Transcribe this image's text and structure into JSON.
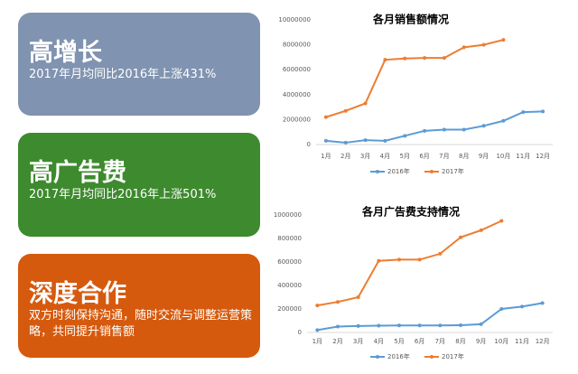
{
  "cards": [
    {
      "title": "高增长",
      "subtitle": "2017年月均同比2016年上涨431%",
      "color": "#8093b0"
    },
    {
      "title": "高广告费",
      "subtitle": "2017年月均同比2016年上涨501%",
      "color": "#3e8a2e"
    },
    {
      "title": "深度合作",
      "subtitle": "双方时刻保持沟通，随时交流与调整运营策略，共同提升销售额",
      "color": "#d65a0d"
    }
  ],
  "chart_data": [
    {
      "type": "line",
      "title": "各月销售额情况",
      "categories": [
        "1月",
        "2月",
        "3月",
        "4月",
        "5月",
        "6月",
        "7月",
        "8月",
        "9月",
        "10月",
        "11月",
        "12月"
      ],
      "series": [
        {
          "name": "2016年",
          "color": "#5b9bd5",
          "values": [
            300000,
            150000,
            350000,
            300000,
            700000,
            1100000,
            1200000,
            1200000,
            1500000,
            1900000,
            2600000,
            2650000
          ]
        },
        {
          "name": "2017年",
          "color": "#ed7d31",
          "values": [
            2200000,
            2700000,
            3300000,
            6800000,
            6900000,
            6950000,
            6950000,
            7800000,
            8000000,
            8400000,
            null,
            null
          ]
        }
      ],
      "ylim": [
        0,
        10000000
      ],
      "yticks": [
        0,
        2000000,
        4000000,
        6000000,
        8000000,
        10000000
      ],
      "legend": "bottom"
    },
    {
      "type": "line",
      "title": "各月广告费支持情况",
      "categories": [
        "1月",
        "2月",
        "3月",
        "4月",
        "5月",
        "6月",
        "7月",
        "8月",
        "9月",
        "10月",
        "11月",
        "12月"
      ],
      "series": [
        {
          "name": "2016年",
          "color": "#5b9bd5",
          "values": [
            20000,
            50000,
            55000,
            58000,
            60000,
            60000,
            60000,
            62000,
            70000,
            200000,
            220000,
            250000
          ]
        },
        {
          "name": "2017年",
          "color": "#ed7d31",
          "values": [
            230000,
            260000,
            300000,
            610000,
            620000,
            620000,
            670000,
            810000,
            870000,
            950000,
            null,
            null
          ]
        }
      ],
      "ylim": [
        0,
        1000000
      ],
      "yticks": [
        0,
        200000,
        400000,
        600000,
        800000,
        1000000
      ],
      "legend": "bottom"
    }
  ]
}
